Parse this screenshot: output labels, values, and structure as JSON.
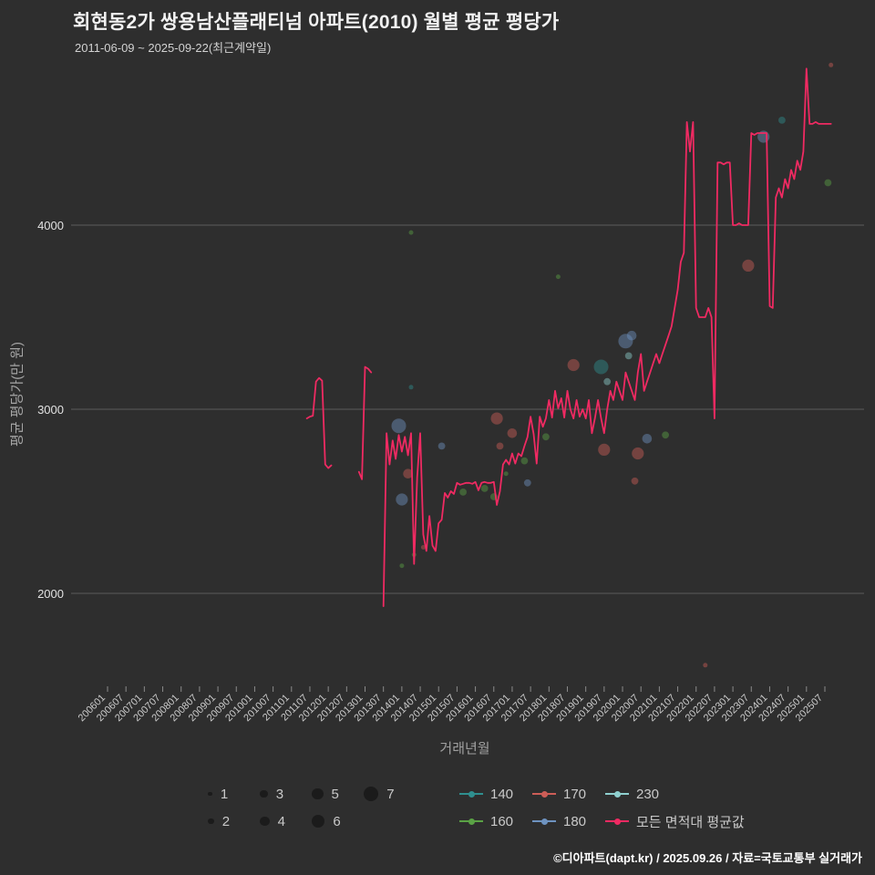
{
  "footer": {
    "credit": "©디아파트(dapt.kr) / 2025.09.26 / 자료=국토교통부 실거래가"
  },
  "colors": {
    "background": "#2e2e2e",
    "grid": "#5c5c5c",
    "text": "#e2e2e2",
    "muted": "#a6a6a6",
    "line": "#ef2a62",
    "s140": "#2f8f8f",
    "s160": "#5aa245",
    "s170": "#cd5d57",
    "s180": "#6e93c0",
    "s230": "#8fd0cf",
    "size_dot": "#1b1b1b"
  },
  "chart_data": {
    "type": "line",
    "title": "회현동2가 쌍용남산플래티넘 아파트(2010) 월별 평균 평당가",
    "subtitle": "2011-06-09 ~ 2025-09-22(최근계약일)",
    "xlabel": "거래년월",
    "ylabel": "평균 평당가(만 원)",
    "ylim": [
      1400,
      4900
    ],
    "grid": true,
    "legend_position": "bottom",
    "y_axis": {
      "label": "평균 평당가(만 원)",
      "ticks": [
        2000,
        3000,
        4000
      ]
    },
    "x_axis": {
      "label": "거래년월",
      "tick_labels": [
        "200601",
        "200607",
        "200701",
        "200707",
        "200801",
        "200807",
        "200901",
        "200907",
        "201001",
        "201007",
        "201101",
        "201107",
        "201201",
        "201207",
        "201301",
        "201307",
        "201401",
        "201407",
        "201501",
        "201507",
        "201601",
        "201607",
        "201701",
        "201707",
        "201801",
        "201807",
        "201901",
        "201907",
        "202001",
        "202007",
        "202101",
        "202107",
        "202201",
        "202207",
        "202301",
        "202307",
        "202401",
        "202407",
        "202501",
        "202507"
      ]
    },
    "line_series": {
      "name": "모든 면적대 평균값",
      "color_key": "line",
      "segments": [
        [
          [
            201106,
            2950
          ],
          [
            201107,
            2960
          ],
          [
            201108,
            2965
          ],
          [
            201109,
            3150
          ],
          [
            201110,
            3170
          ],
          [
            201111,
            3155
          ],
          [
            201112,
            2700
          ],
          [
            201201,
            2680
          ],
          [
            201202,
            2695
          ]
        ],
        [
          [
            201211,
            2660
          ],
          [
            201212,
            2620
          ],
          [
            201301,
            3230
          ],
          [
            201302,
            3220
          ],
          [
            201303,
            3200
          ]
        ],
        [
          [
            201307,
            1930
          ],
          [
            201308,
            2870
          ],
          [
            201309,
            2700
          ],
          [
            201310,
            2830
          ],
          [
            201311,
            2730
          ],
          [
            201312,
            2860
          ],
          [
            201401,
            2770
          ],
          [
            201402,
            2850
          ],
          [
            201403,
            2750
          ],
          [
            201404,
            2870
          ],
          [
            201405,
            2160
          ],
          [
            201406,
            2630
          ],
          [
            201407,
            2870
          ],
          [
            201408,
            2320
          ],
          [
            201409,
            2230
          ],
          [
            201410,
            2420
          ],
          [
            201411,
            2260
          ],
          [
            201412,
            2230
          ],
          [
            201501,
            2380
          ],
          [
            201502,
            2400
          ],
          [
            201503,
            2545
          ],
          [
            201504,
            2520
          ],
          [
            201505,
            2555
          ],
          [
            201506,
            2540
          ],
          [
            201507,
            2600
          ],
          [
            201508,
            2590
          ],
          [
            201509,
            2595
          ],
          [
            201510,
            2600
          ],
          [
            201511,
            2600
          ],
          [
            201512,
            2595
          ],
          [
            201601,
            2605
          ],
          [
            201602,
            2560
          ],
          [
            201603,
            2600
          ],
          [
            201604,
            2605
          ],
          [
            201605,
            2600
          ],
          [
            201606,
            2600
          ],
          [
            201607,
            2605
          ],
          [
            201608,
            2480
          ],
          [
            201609,
            2555
          ],
          [
            201610,
            2700
          ],
          [
            201611,
            2725
          ],
          [
            201612,
            2700
          ],
          [
            201701,
            2760
          ],
          [
            201702,
            2705
          ],
          [
            201703,
            2760
          ],
          [
            201704,
            2745
          ],
          [
            201705,
            2800
          ],
          [
            201706,
            2850
          ],
          [
            201707,
            2960
          ],
          [
            201708,
            2865
          ],
          [
            201709,
            2705
          ],
          [
            201710,
            2960
          ],
          [
            201711,
            2905
          ],
          [
            201712,
            2950
          ],
          [
            201801,
            3050
          ],
          [
            201802,
            2955
          ],
          [
            201803,
            3100
          ],
          [
            201804,
            3005
          ],
          [
            201805,
            3060
          ],
          [
            201806,
            2955
          ],
          [
            201807,
            3100
          ],
          [
            201808,
            3000
          ],
          [
            201809,
            2950
          ],
          [
            201810,
            3050
          ],
          [
            201811,
            2960
          ],
          [
            201812,
            3000
          ],
          [
            201901,
            2950
          ],
          [
            201902,
            3050
          ],
          [
            201903,
            2870
          ],
          [
            201904,
            2950
          ],
          [
            201905,
            3050
          ],
          [
            201906,
            2950
          ],
          [
            201907,
            2870
          ],
          [
            201908,
            3000
          ],
          [
            201909,
            3100
          ],
          [
            201910,
            3050
          ],
          [
            201911,
            3150
          ],
          [
            201912,
            3100
          ],
          [
            202001,
            3050
          ],
          [
            202002,
            3200
          ],
          [
            202003,
            3150
          ],
          [
            202004,
            3100
          ],
          [
            202005,
            3050
          ],
          [
            202006,
            3200
          ],
          [
            202007,
            3300
          ],
          [
            202008,
            3100
          ],
          [
            202009,
            3150
          ],
          [
            202010,
            3200
          ],
          [
            202011,
            3250
          ],
          [
            202012,
            3300
          ],
          [
            202101,
            3250
          ],
          [
            202102,
            3300
          ],
          [
            202103,
            3350
          ],
          [
            202104,
            3400
          ],
          [
            202105,
            3450
          ],
          [
            202106,
            3550
          ],
          [
            202107,
            3650
          ],
          [
            202108,
            3800
          ],
          [
            202109,
            3850
          ],
          [
            202110,
            4560
          ],
          [
            202111,
            4400
          ],
          [
            202112,
            4560
          ],
          [
            202201,
            3550
          ],
          [
            202202,
            3500
          ],
          [
            202203,
            3500
          ],
          [
            202204,
            3500
          ],
          [
            202205,
            3550
          ],
          [
            202206,
            3500
          ],
          [
            202207,
            2950
          ],
          [
            202208,
            4340
          ],
          [
            202209,
            4340
          ],
          [
            202210,
            4330
          ],
          [
            202211,
            4340
          ],
          [
            202212,
            4340
          ],
          [
            202301,
            4000
          ],
          [
            202302,
            4000
          ],
          [
            202303,
            4010
          ],
          [
            202304,
            4000
          ],
          [
            202305,
            4000
          ],
          [
            202306,
            4000
          ],
          [
            202307,
            4500
          ],
          [
            202308,
            4490
          ],
          [
            202309,
            4500
          ],
          [
            202310,
            4500
          ],
          [
            202311,
            4500
          ],
          [
            202312,
            4500
          ],
          [
            202401,
            3560
          ],
          [
            202402,
            3550
          ],
          [
            202403,
            4150
          ],
          [
            202404,
            4200
          ],
          [
            202405,
            4150
          ],
          [
            202406,
            4250
          ],
          [
            202407,
            4200
          ],
          [
            202408,
            4300
          ],
          [
            202409,
            4250
          ],
          [
            202410,
            4350
          ],
          [
            202411,
            4300
          ],
          [
            202412,
            4400
          ],
          [
            202501,
            4850
          ],
          [
            202502,
            4550
          ],
          [
            202503,
            4550
          ],
          [
            202504,
            4560
          ],
          [
            202505,
            4550
          ],
          [
            202506,
            4550
          ],
          [
            202507,
            4550
          ],
          [
            202508,
            4550
          ],
          [
            202509,
            4550
          ]
        ]
      ]
    },
    "scatter_series": [
      {
        "name": "140",
        "color_key": "s140",
        "points": [
          [
            201404,
            3120,
            1
          ],
          [
            201906,
            3230,
            5
          ],
          [
            202405,
            4570,
            2
          ]
        ]
      },
      {
        "name": "160",
        "color_key": "s160",
        "points": [
          [
            201401,
            2150,
            1
          ],
          [
            201404,
            3960,
            1
          ],
          [
            201405,
            2210,
            1
          ],
          [
            201509,
            2550,
            2
          ],
          [
            201604,
            2570,
            2
          ],
          [
            201607,
            2525,
            2
          ],
          [
            201611,
            2650,
            1
          ],
          [
            201705,
            2720,
            2
          ],
          [
            201712,
            2850,
            2
          ],
          [
            201804,
            3720,
            1
          ],
          [
            202103,
            2860,
            2
          ],
          [
            202508,
            4230,
            2
          ]
        ]
      },
      {
        "name": "170",
        "color_key": "s170",
        "points": [
          [
            201403,
            2650,
            3
          ],
          [
            201408,
            2250,
            1
          ],
          [
            201608,
            2950,
            4
          ],
          [
            201609,
            2800,
            2
          ],
          [
            201701,
            2870,
            3
          ],
          [
            201809,
            3240,
            4
          ],
          [
            201907,
            2780,
            4
          ],
          [
            202005,
            2610,
            2
          ],
          [
            202006,
            2760,
            4
          ],
          [
            202204,
            1610,
            1
          ],
          [
            202306,
            3780,
            4
          ],
          [
            202509,
            4870,
            1
          ]
        ]
      },
      {
        "name": "180",
        "color_key": "s180",
        "points": [
          [
            201312,
            2910,
            5
          ],
          [
            201401,
            2510,
            4
          ],
          [
            201502,
            2800,
            2
          ],
          [
            201706,
            2600,
            2
          ],
          [
            202002,
            3370,
            5
          ],
          [
            202004,
            3400,
            3
          ],
          [
            202009,
            2840,
            3
          ],
          [
            202311,
            4480,
            4
          ]
        ]
      },
      {
        "name": "230",
        "color_key": "s230",
        "points": [
          [
            201908,
            3150,
            2
          ],
          [
            202003,
            3290,
            2
          ]
        ]
      }
    ]
  },
  "legend": {
    "size_rows": [
      [
        1,
        3,
        5,
        7
      ],
      [
        2,
        4,
        6
      ]
    ],
    "series_rows": [
      [
        "140",
        "170",
        "230"
      ],
      [
        "160",
        "180",
        "모든 면적대 평균값"
      ]
    ],
    "series": [
      {
        "label": "140",
        "color_key": "s140"
      },
      {
        "label": "160",
        "color_key": "s160"
      },
      {
        "label": "170",
        "color_key": "s170"
      },
      {
        "label": "180",
        "color_key": "s180"
      },
      {
        "label": "230",
        "color_key": "s230"
      },
      {
        "label": "모든 면적대 평균값",
        "color_key": "line"
      }
    ]
  }
}
